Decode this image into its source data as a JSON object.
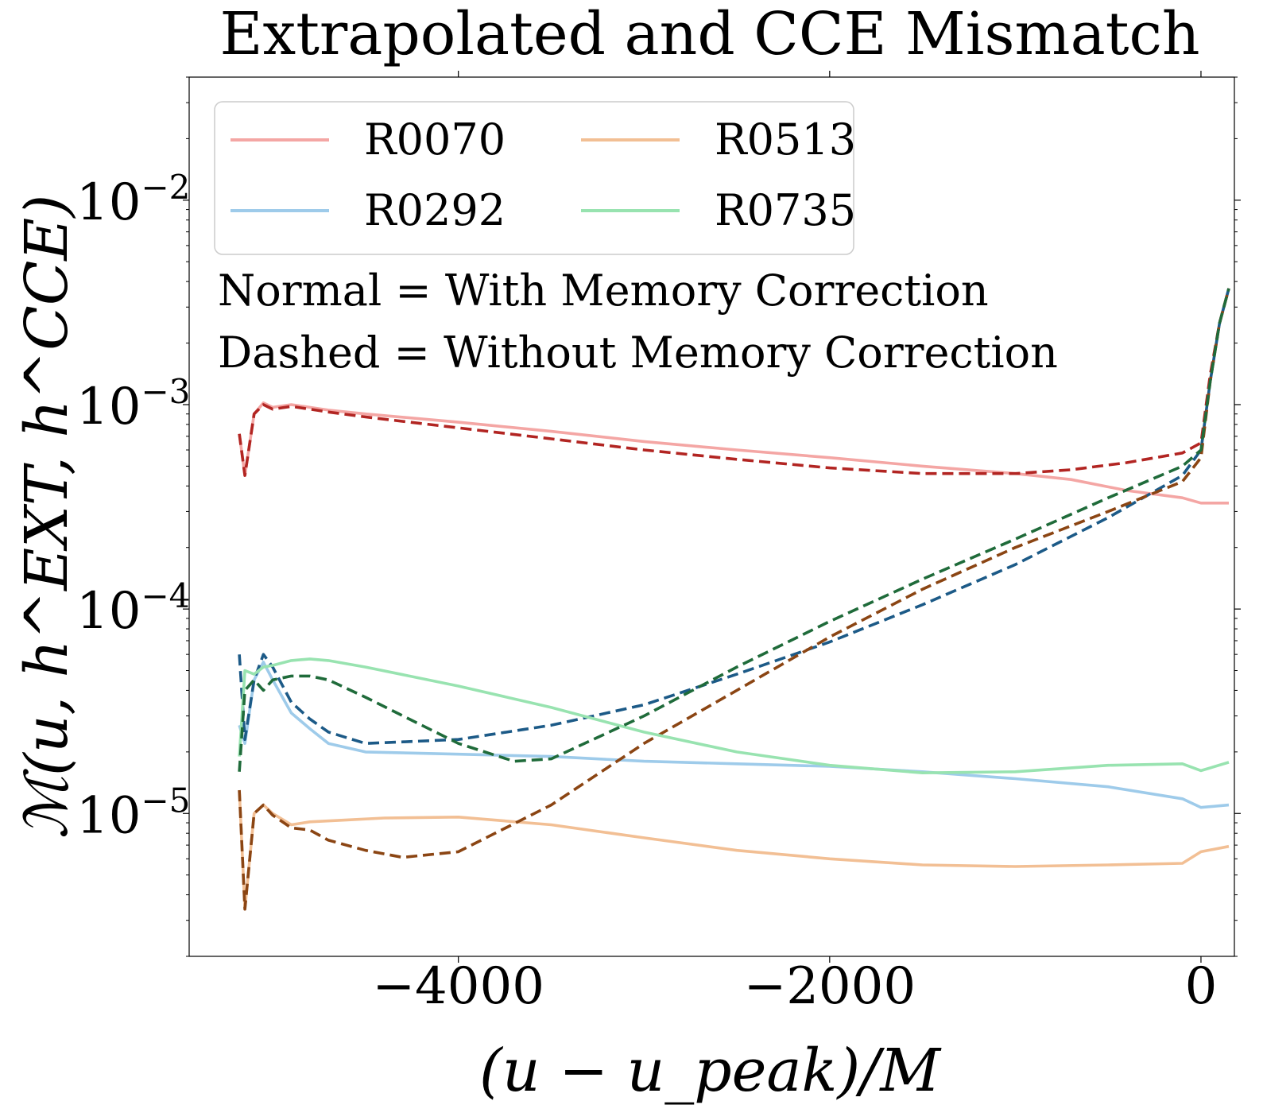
{
  "chart_data": {
    "type": "line",
    "title": "Extrapolated and CCE Mismatch",
    "xlabel": "(u − u_peak)/M",
    "ylabel": "ℳ(u, h^EXT, h^CCE)",
    "xscale": "linear",
    "yscale": "log",
    "xlim": [
      -5450,
      180
    ],
    "ylim": [
      2e-06,
      0.04
    ],
    "xticks": [
      {
        "value": -4000,
        "label": "−4000"
      },
      {
        "value": -2000,
        "label": "−2000"
      },
      {
        "value": 0,
        "label": "0"
      }
    ],
    "yticks": [
      {
        "value": 1e-05,
        "base": "10",
        "exp": "−5"
      },
      {
        "value": 0.0001,
        "base": "10",
        "exp": "−4"
      },
      {
        "value": 0.001,
        "base": "10",
        "exp": "−3"
      },
      {
        "value": 0.01,
        "base": "10",
        "exp": "−2"
      }
    ],
    "legend": {
      "position": "top-left",
      "columns": 2,
      "entries": [
        {
          "label": "R0070",
          "color": "#f4a6a4"
        },
        {
          "label": "R0513",
          "color": "#f2bf94"
        },
        {
          "label": "R0292",
          "color": "#9ecbea"
        },
        {
          "label": "R0735",
          "color": "#98e3b0"
        }
      ]
    },
    "annotations": [
      "Normal = With Memory Correction",
      "Dashed = Without Memory Correction"
    ],
    "series": [
      {
        "name": "R0070",
        "style": "solid",
        "color": "#f4a6a4",
        "x": [
          -5180,
          -5150,
          -5100,
          -5050,
          -5000,
          -4900,
          -4800,
          -4700,
          -4500,
          -4000,
          -3500,
          -3000,
          -2500,
          -2000,
          -1500,
          -1000,
          -700,
          -400,
          -100,
          0,
          150
        ],
        "y": [
          0.00072,
          0.00045,
          0.0009,
          0.00102,
          0.00097,
          0.001,
          0.00097,
          0.00094,
          0.0009,
          0.00082,
          0.00074,
          0.00066,
          0.0006,
          0.00055,
          0.0005,
          0.00046,
          0.00043,
          0.00038,
          0.00035,
          0.00033,
          0.00033
        ]
      },
      {
        "name": "R0070",
        "style": "dashed",
        "color": "#b22522",
        "x": [
          -5180,
          -5150,
          -5100,
          -5050,
          -5000,
          -4900,
          -4800,
          -4700,
          -4500,
          -4000,
          -3500,
          -3000,
          -2500,
          -2000,
          -1500,
          -1000,
          -700,
          -400,
          -100,
          0,
          50,
          100,
          150
        ],
        "y": [
          0.00072,
          0.00045,
          0.0009,
          0.001,
          0.00095,
          0.00098,
          0.00095,
          0.00092,
          0.00087,
          0.00077,
          0.00068,
          0.0006,
          0.00054,
          0.00049,
          0.00046,
          0.00046,
          0.00048,
          0.00052,
          0.00058,
          0.00065,
          0.0014,
          0.0025,
          0.0037
        ]
      },
      {
        "name": "R0292",
        "style": "solid",
        "color": "#9ecbea",
        "x": [
          -5180,
          -5150,
          -5100,
          -5050,
          -5000,
          -4900,
          -4800,
          -4700,
          -4500,
          -4000,
          -3500,
          -3000,
          -2500,
          -2000,
          -1500,
          -1000,
          -500,
          -100,
          0,
          150
        ],
        "y": [
          2.7e-05,
          2.2e-05,
          4.5e-05,
          5.5e-05,
          4.5e-05,
          3.1e-05,
          2.6e-05,
          2.2e-05,
          2e-05,
          1.95e-05,
          1.9e-05,
          1.8e-05,
          1.75e-05,
          1.7e-05,
          1.6e-05,
          1.48e-05,
          1.35e-05,
          1.18e-05,
          1.07e-05,
          1.1e-05
        ]
      },
      {
        "name": "R0292",
        "style": "dashed",
        "color": "#1c5a87",
        "x": [
          -5180,
          -5150,
          -5100,
          -5050,
          -5000,
          -4900,
          -4800,
          -4700,
          -4500,
          -4000,
          -3500,
          -3000,
          -2500,
          -2000,
          -1500,
          -1000,
          -500,
          -100,
          0,
          50,
          100,
          150
        ],
        "y": [
          6e-05,
          2.3e-05,
          4.5e-05,
          6e-05,
          5.2e-05,
          3.5e-05,
          2.9e-05,
          2.5e-05,
          2.2e-05,
          2.3e-05,
          2.7e-05,
          3.4e-05,
          4.8e-05,
          6.9e-05,
          0.000105,
          0.000165,
          0.00028,
          0.00045,
          0.0006,
          0.0013,
          0.0025,
          0.0037
        ]
      },
      {
        "name": "R0513",
        "style": "solid",
        "color": "#f2bf94",
        "x": [
          -5180,
          -5150,
          -5100,
          -5050,
          -5000,
          -4900,
          -4800,
          -4600,
          -4400,
          -4000,
          -3500,
          -3000,
          -2500,
          -2000,
          -1500,
          -1000,
          -500,
          -100,
          0,
          150
        ],
        "y": [
          1.3e-05,
          3.4e-06,
          1e-05,
          1.1e-05,
          1e-05,
          8.8e-06,
          9.1e-06,
          9.3e-06,
          9.5e-06,
          9.6e-06,
          8.8e-06,
          7.6e-06,
          6.6e-06,
          6e-06,
          5.6e-06,
          5.5e-06,
          5.6e-06,
          5.7e-06,
          6.5e-06,
          6.9e-06
        ]
      },
      {
        "name": "R0513",
        "style": "dashed",
        "color": "#8b4513",
        "x": [
          -5180,
          -5150,
          -5100,
          -5050,
          -5000,
          -4900,
          -4800,
          -4700,
          -4500,
          -4300,
          -4000,
          -3500,
          -3000,
          -2500,
          -2000,
          -1500,
          -1000,
          -500,
          -100,
          0,
          50,
          100,
          150
        ],
        "y": [
          1.3e-05,
          3.4e-06,
          1e-05,
          1.1e-05,
          9.8e-06,
          8.5e-06,
          8.3e-06,
          7.4e-06,
          6.6e-06,
          6.1e-06,
          6.5e-06,
          1.1e-05,
          2.2e-05,
          4e-05,
          7.3e-05,
          0.000125,
          0.0002,
          0.0003,
          0.00042,
          0.00055,
          0.0013,
          0.0025,
          0.0037
        ]
      },
      {
        "name": "R0735",
        "style": "solid",
        "color": "#98e3b0",
        "x": [
          -5180,
          -5150,
          -5100,
          -5050,
          -5000,
          -4900,
          -4800,
          -4700,
          -4500,
          -4000,
          -3500,
          -3000,
          -2500,
          -2000,
          -1500,
          -1000,
          -500,
          -100,
          0,
          150
        ],
        "y": [
          1.9e-05,
          5e-05,
          4.8e-05,
          5.2e-05,
          5.3e-05,
          5.6e-05,
          5.7e-05,
          5.6e-05,
          5.2e-05,
          4.2e-05,
          3.3e-05,
          2.5e-05,
          2e-05,
          1.72e-05,
          1.58e-05,
          1.6e-05,
          1.72e-05,
          1.75e-05,
          1.62e-05,
          1.78e-05
        ]
      },
      {
        "name": "R0735",
        "style": "dashed",
        "color": "#1f6b3a",
        "x": [
          -5180,
          -5150,
          -5100,
          -5050,
          -5000,
          -4900,
          -4800,
          -4700,
          -4500,
          -4000,
          -3700,
          -3500,
          -3000,
          -2500,
          -2000,
          -1500,
          -1000,
          -500,
          -100,
          0,
          50,
          100,
          150
        ],
        "y": [
          1.6e-05,
          4e-05,
          4.5e-05,
          4e-05,
          4.5e-05,
          4.7e-05,
          4.7e-05,
          4.5e-05,
          3.7e-05,
          2.2e-05,
          1.8e-05,
          1.85e-05,
          3e-05,
          5.2e-05,
          8.7e-05,
          0.00014,
          0.00022,
          0.00035,
          0.0005,
          0.0006,
          0.0013,
          0.0025,
          0.0037
        ]
      }
    ]
  }
}
